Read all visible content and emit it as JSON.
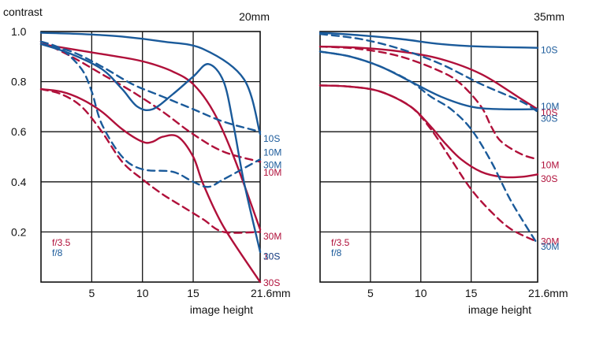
{
  "colors": {
    "red": "#b0103a",
    "blue": "#1a5a9a",
    "grid": "#111111",
    "text": "#111111"
  },
  "chart_data": [
    {
      "type": "line",
      "title": "20mm",
      "ylabel": "contrast",
      "xlabel": "image height",
      "xunit": "mm",
      "xlim": [
        0,
        21.6
      ],
      "ylim": [
        0,
        1.0
      ],
      "xticks": [
        {
          "value": 5,
          "label": "5"
        },
        {
          "value": 10,
          "label": "10"
        },
        {
          "value": 15,
          "label": "15"
        },
        {
          "value": 21.6,
          "label": "21.6mm"
        }
      ],
      "yticks": [
        {
          "value": 1.0,
          "label": "1.0"
        },
        {
          "value": 0.8,
          "label": "0.8"
        },
        {
          "value": 0.6,
          "label": "0.6"
        },
        {
          "value": 0.4,
          "label": "0.4"
        },
        {
          "value": 0.2,
          "label": "0.2"
        }
      ],
      "grid": true,
      "legend": [
        {
          "label": "f/3.5",
          "color": "red"
        },
        {
          "label": "f/8",
          "color": "blue"
        }
      ],
      "series": [
        {
          "name": "10S",
          "aperture": "f/3.5",
          "color": "red",
          "dash": false,
          "x": [
            0,
            3,
            6,
            9,
            11,
            13,
            15,
            17,
            19,
            21.6
          ],
          "y": [
            0.95,
            0.93,
            0.91,
            0.89,
            0.87,
            0.84,
            0.79,
            0.68,
            0.5,
            0.21
          ]
        },
        {
          "name": "10M",
          "aperture": "f/3.5",
          "color": "red",
          "dash": true,
          "x": [
            0,
            3,
            6,
            9,
            12,
            15,
            18,
            21.6
          ],
          "y": [
            0.96,
            0.9,
            0.83,
            0.76,
            0.68,
            0.59,
            0.52,
            0.48
          ]
        },
        {
          "name": "30M",
          "aperture": "f/3.5",
          "color": "red",
          "dash": false,
          "x": [
            0,
            2,
            4,
            6,
            8,
            10,
            11,
            12,
            13.5,
            15,
            16,
            18,
            21.6
          ],
          "y": [
            0.77,
            0.76,
            0.73,
            0.68,
            0.61,
            0.56,
            0.56,
            0.58,
            0.58,
            0.5,
            0.39,
            0.22,
            0.0
          ]
        },
        {
          "name": "30S",
          "aperture": "f/3.5",
          "color": "red",
          "dash": true,
          "x": [
            0,
            2,
            4,
            6,
            8,
            10,
            12,
            14,
            16,
            18,
            21.6
          ],
          "y": [
            0.77,
            0.75,
            0.7,
            0.6,
            0.48,
            0.41,
            0.35,
            0.3,
            0.25,
            0.2,
            0.2
          ]
        },
        {
          "name": "10S",
          "aperture": "f/8",
          "color": "blue",
          "dash": false,
          "x": [
            0,
            4,
            8,
            12,
            16,
            20,
            21.6
          ],
          "y": [
            0.995,
            0.99,
            0.98,
            0.96,
            0.93,
            0.81,
            0.59
          ]
        },
        {
          "name": "10M",
          "aperture": "f/8",
          "color": "blue",
          "dash": true,
          "x": [
            0,
            3,
            6,
            9,
            12,
            15,
            18,
            21.6
          ],
          "y": [
            0.95,
            0.92,
            0.86,
            0.79,
            0.74,
            0.69,
            0.64,
            0.6
          ]
        },
        {
          "name": "30M",
          "aperture": "f/8",
          "color": "blue",
          "dash": false,
          "x": [
            0,
            3,
            6,
            8,
            9.5,
            11,
            13,
            15,
            16.5,
            18,
            19,
            20,
            21.6
          ],
          "y": [
            0.95,
            0.91,
            0.85,
            0.77,
            0.7,
            0.69,
            0.75,
            0.82,
            0.87,
            0.8,
            0.62,
            0.4,
            0.12
          ]
        },
        {
          "name": "30S",
          "aperture": "f/8",
          "color": "blue",
          "dash": true,
          "x": [
            0,
            2,
            4,
            5,
            6,
            8,
            10,
            13,
            15,
            16.5,
            18,
            21.6
          ],
          "y": [
            0.96,
            0.93,
            0.85,
            0.76,
            0.63,
            0.5,
            0.45,
            0.44,
            0.4,
            0.38,
            0.41,
            0.49
          ]
        }
      ],
      "curve_labels": [
        {
          "text": "10S",
          "color": "blue",
          "y": 0.575
        },
        {
          "text": "10M",
          "color": "blue",
          "y": 0.52
        },
        {
          "text": "30M",
          "color": "blue",
          "y": 0.47
        },
        {
          "text": "10M",
          "color": "red",
          "y": 0.44
        },
        {
          "text": "30M",
          "color": "red",
          "y": 0.185
        },
        {
          "text": "10S",
          "color": "red",
          "y": 0.105
        },
        {
          "text": "30S",
          "color": "blue",
          "y": 0.105
        },
        {
          "text": "30S",
          "color": "red",
          "y": 0.0
        }
      ]
    },
    {
      "type": "line",
      "title": "35mm",
      "xlabel": "image height",
      "xunit": "mm",
      "xlim": [
        0,
        21.6
      ],
      "ylim": [
        0,
        1.0
      ],
      "xticks": [
        {
          "value": 5,
          "label": "5"
        },
        {
          "value": 10,
          "label": "10"
        },
        {
          "value": 15,
          "label": "15"
        },
        {
          "value": 21.6,
          "label": "21.6mm"
        }
      ],
      "grid": true,
      "legend": [
        {
          "label": "f/3.5",
          "color": "red"
        },
        {
          "label": "f/8",
          "color": "blue"
        }
      ],
      "series": [
        {
          "name": "10S",
          "aperture": "f/3.5",
          "color": "red",
          "dash": false,
          "x": [
            0,
            4,
            8,
            12,
            16,
            20,
            21.6
          ],
          "y": [
            0.94,
            0.935,
            0.92,
            0.89,
            0.83,
            0.73,
            0.69
          ]
        },
        {
          "name": "10M",
          "aperture": "f/3.5",
          "color": "red",
          "dash": true,
          "x": [
            0,
            4,
            8,
            12,
            14,
            16,
            17,
            18,
            20,
            21.6
          ],
          "y": [
            0.94,
            0.93,
            0.9,
            0.84,
            0.79,
            0.7,
            0.62,
            0.56,
            0.51,
            0.49
          ]
        },
        {
          "name": "30S",
          "aperture": "f/3.5",
          "color": "red",
          "dash": false,
          "x": [
            0,
            3,
            6,
            9,
            11,
            12.5,
            14,
            16,
            18,
            20,
            21.6
          ],
          "y": [
            0.785,
            0.78,
            0.76,
            0.7,
            0.62,
            0.55,
            0.49,
            0.44,
            0.42,
            0.42,
            0.43
          ]
        },
        {
          "name": "30M",
          "aperture": "f/3.5",
          "color": "red",
          "dash": true,
          "x": [
            0,
            3,
            6,
            9,
            11,
            13,
            15,
            17,
            19,
            21.6
          ],
          "y": [
            0.785,
            0.78,
            0.76,
            0.7,
            0.61,
            0.49,
            0.37,
            0.28,
            0.21,
            0.16
          ]
        },
        {
          "name": "10S",
          "aperture": "f/8",
          "color": "blue",
          "dash": false,
          "x": [
            0,
            4,
            8,
            12,
            16,
            21.6
          ],
          "y": [
            0.995,
            0.985,
            0.97,
            0.95,
            0.94,
            0.935
          ]
        },
        {
          "name": "10M",
          "aperture": "f/8",
          "color": "blue",
          "dash": true,
          "x": [
            0,
            4,
            8,
            12,
            16,
            20,
            21.6
          ],
          "y": [
            0.99,
            0.97,
            0.93,
            0.87,
            0.79,
            0.72,
            0.68
          ]
        },
        {
          "name": "30S",
          "aperture": "f/8",
          "color": "blue",
          "dash": false,
          "x": [
            0,
            3,
            6,
            9,
            12,
            15,
            18,
            21.6
          ],
          "y": [
            0.92,
            0.9,
            0.86,
            0.8,
            0.74,
            0.7,
            0.69,
            0.69
          ]
        },
        {
          "name": "30M",
          "aperture": "f/8",
          "color": "blue",
          "dash": true,
          "x": [
            0,
            3,
            6,
            9,
            11,
            13,
            15,
            17,
            19,
            21.6
          ],
          "y": [
            0.92,
            0.9,
            0.86,
            0.8,
            0.74,
            0.69,
            0.61,
            0.48,
            0.32,
            0.15
          ]
        }
      ],
      "curve_labels": [
        {
          "text": "10S",
          "color": "blue",
          "y": 0.93
        },
        {
          "text": "10M",
          "color": "blue",
          "y": 0.705
        },
        {
          "text": "10S",
          "color": "red",
          "y": 0.68
        },
        {
          "text": "30S",
          "color": "blue",
          "y": 0.655
        },
        {
          "text": "10M",
          "color": "red",
          "y": 0.47
        },
        {
          "text": "30S",
          "color": "red",
          "y": 0.415
        },
        {
          "text": "30M",
          "color": "red",
          "y": 0.165
        },
        {
          "text": "30M",
          "color": "blue",
          "y": 0.145
        }
      ]
    }
  ]
}
